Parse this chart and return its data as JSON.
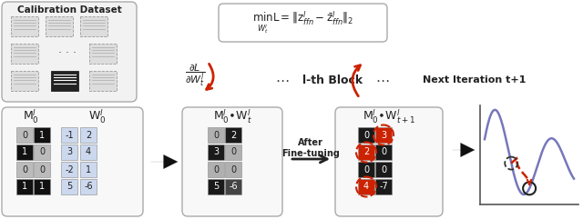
{
  "bg_color": "#ffffff",
  "calibration_label": "Calibration Dataset",
  "lblock_label": "l-th Block",
  "next_iter_label": "Next Iteration t+1",
  "after_ft_label": "After\nFine-tuning",
  "mask_matrix": [
    [
      0,
      1
    ],
    [
      1,
      0
    ],
    [
      0,
      0
    ],
    [
      1,
      1
    ]
  ],
  "mask_colors": [
    [
      "#bbbbbb",
      "#111111"
    ],
    [
      "#111111",
      "#bbbbbb"
    ],
    [
      "#bbbbbb",
      "#bbbbbb"
    ],
    [
      "#111111",
      "#111111"
    ]
  ],
  "W_matrix": [
    [
      "-1",
      "2"
    ],
    [
      "3",
      "4"
    ],
    [
      "-2",
      "1"
    ],
    [
      "5",
      "-6"
    ]
  ],
  "MW1_matrix": [
    [
      "0",
      "2"
    ],
    [
      "3",
      "0"
    ],
    [
      "0",
      "0"
    ],
    [
      "5",
      "-6"
    ]
  ],
  "MW1_dark": [
    [
      false,
      true
    ],
    [
      true,
      false
    ],
    [
      false,
      false
    ],
    [
      true,
      false
    ]
  ],
  "MW1_dark2": [
    [
      false,
      false
    ],
    [
      false,
      false
    ],
    [
      false,
      false
    ],
    [
      false,
      true
    ]
  ],
  "MW2_matrix": [
    [
      "0",
      "3"
    ],
    [
      "2",
      "0"
    ],
    [
      "0",
      "0"
    ],
    [
      "4",
      "-7"
    ]
  ],
  "MW2_dark": [
    [
      false,
      false
    ],
    [
      false,
      false
    ],
    [
      false,
      false
    ],
    [
      false,
      false
    ]
  ],
  "MW2_red": [
    [
      false,
      true
    ],
    [
      true,
      false
    ],
    [
      false,
      false
    ],
    [
      true,
      false
    ]
  ],
  "MW2_darkgray": [
    [
      true,
      false
    ],
    [
      false,
      true
    ],
    [
      true,
      true
    ],
    [
      false,
      true
    ]
  ],
  "red_color": "#cc2200",
  "dark_color": "#1a1a1a",
  "gray_color": "#b0b0b0",
  "lightblue_color": "#ccd8ee",
  "plot_purple": "#7777bb",
  "plot_red": "#cc2200"
}
